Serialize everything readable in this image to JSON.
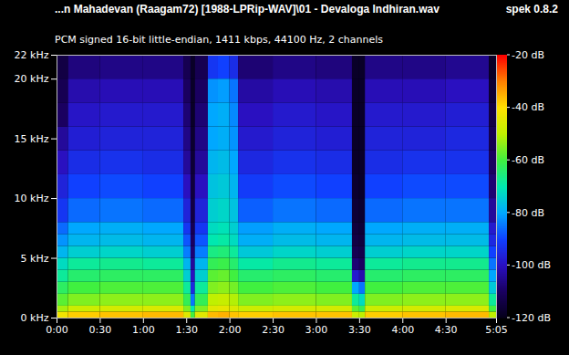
{
  "chart_data": {
    "type": "heatmap",
    "title": "...n Mahadevan (Raagam72) [1988-LPRip-WAV]\\01 - Devaloga Indhiran.wav",
    "subtitle": "PCM signed 16-bit little-endian, 1411 kbps, 44100 Hz, 2 channels",
    "annotations": [
      "spek 0.8.2"
    ],
    "xlim": [
      0,
      305
    ],
    "xticks": [
      {
        "value": 0,
        "label": "0:00"
      },
      {
        "value": 30,
        "label": "0:30"
      },
      {
        "value": 60,
        "label": "1:00"
      },
      {
        "value": 90,
        "label": "1:30"
      },
      {
        "value": 120,
        "label": "2:00"
      },
      {
        "value": 150,
        "label": "2:30"
      },
      {
        "value": 180,
        "label": "3:00"
      },
      {
        "value": 210,
        "label": "3:30"
      },
      {
        "value": 240,
        "label": "4:00"
      },
      {
        "value": 270,
        "label": "4:30"
      },
      {
        "value": 305,
        "label": "5:05"
      }
    ],
    "ylim": [
      0,
      22
    ],
    "yticks": [
      {
        "value": 0,
        "label": "0 kHz"
      },
      {
        "value": 5,
        "label": "5 kHz"
      },
      {
        "value": 10,
        "label": "10 kHz"
      },
      {
        "value": 15,
        "label": "15 kHz"
      },
      {
        "value": 20,
        "label": "20 kHz"
      },
      {
        "value": 22,
        "label": "22 kHz"
      }
    ],
    "x_edges": [
      0,
      8,
      30,
      60,
      88,
      93,
      96,
      105,
      112,
      120,
      126,
      150,
      180,
      205,
      210,
      214,
      240,
      270,
      300,
      305
    ],
    "y_edges": [
      0,
      0.5,
      1,
      2,
      3,
      4,
      5,
      6,
      7,
      8,
      10,
      12,
      14,
      16,
      18,
      20,
      22
    ],
    "cells": [
      [
        -42,
        -52,
        -58,
        -63,
        -68,
        -72,
        -78,
        -82,
        -86,
        -92,
        -96,
        -100,
        -104,
        -110,
        -112,
        -114
      ],
      [
        -38,
        -48,
        -55,
        -60,
        -64,
        -68,
        -74,
        -78,
        -80,
        -86,
        -90,
        -94,
        -97,
        -99,
        -102,
        -107
      ],
      [
        -37,
        -47,
        -54,
        -59,
        -63,
        -67,
        -73,
        -77,
        -79,
        -85,
        -89,
        -93,
        -96,
        -98,
        -101,
        -106
      ],
      [
        -36,
        -46,
        -54,
        -59,
        -63,
        -68,
        -74,
        -78,
        -80,
        -86,
        -90,
        -94,
        -96,
        -98,
        -101,
        -106
      ],
      [
        -45,
        -55,
        -62,
        -68,
        -74,
        -78,
        -84,
        -88,
        -92,
        -96,
        -100,
        -104,
        -106,
        -108,
        -110,
        -112
      ],
      [
        -60,
        -70,
        -85,
        -95,
        -100,
        -104,
        -108,
        -110,
        -112,
        -114,
        -115,
        -116,
        -117,
        -118,
        -118,
        -118
      ],
      [
        -45,
        -55,
        -62,
        -68,
        -74,
        -78,
        -84,
        -88,
        -92,
        -96,
        -100,
        -104,
        -106,
        -108,
        -110,
        -112
      ],
      [
        -36,
        -45,
        -50,
        -55,
        -58,
        -62,
        -66,
        -70,
        -72,
        -74,
        -76,
        -78,
        -80,
        -80,
        -82,
        -92
      ],
      [
        -35,
        -44,
        -49,
        -54,
        -57,
        -61,
        -65,
        -69,
        -71,
        -73,
        -75,
        -77,
        -79,
        -79,
        -81,
        -90
      ],
      [
        -37,
        -46,
        -51,
        -56,
        -60,
        -64,
        -68,
        -72,
        -74,
        -76,
        -78,
        -80,
        -82,
        -83,
        -85,
        -94
      ],
      [
        -38,
        -48,
        -55,
        -60,
        -64,
        -69,
        -75,
        -79,
        -81,
        -87,
        -91,
        -95,
        -98,
        -100,
        -103,
        -108
      ],
      [
        -37,
        -47,
        -54,
        -59,
        -63,
        -67,
        -73,
        -77,
        -79,
        -85,
        -89,
        -93,
        -96,
        -98,
        -101,
        -106
      ],
      [
        -37,
        -47,
        -55,
        -60,
        -64,
        -68,
        -74,
        -78,
        -80,
        -86,
        -90,
        -94,
        -97,
        -99,
        -102,
        -107
      ],
      [
        -48,
        -58,
        -68,
        -80,
        -98,
        -108,
        -112,
        -114,
        -115,
        -116,
        -117,
        -118,
        -118,
        -118,
        -118,
        -118
      ],
      [
        -50,
        -62,
        -72,
        -85,
        -102,
        -110,
        -113,
        -115,
        -116,
        -117,
        -118,
        -118,
        -118,
        -118,
        -118,
        -118
      ],
      [
        -38,
        -48,
        -55,
        -60,
        -64,
        -68,
        -74,
        -78,
        -80,
        -86,
        -90,
        -94,
        -96,
        -98,
        -101,
        -106
      ],
      [
        -37,
        -47,
        -54,
        -59,
        -63,
        -67,
        -73,
        -77,
        -79,
        -85,
        -89,
        -93,
        -96,
        -98,
        -101,
        -106
      ],
      [
        -36,
        -46,
        -54,
        -59,
        -63,
        -67,
        -73,
        -77,
        -79,
        -85,
        -89,
        -93,
        -95,
        -97,
        -100,
        -105
      ],
      [
        -50,
        -60,
        -68,
        -75,
        -80,
        -85,
        -90,
        -95,
        -98,
        -104,
        -108,
        -110,
        -112,
        -114,
        -116,
        -118
      ]
    ],
    "color_range": [
      -120,
      -20
    ],
    "color_ticks": [
      {
        "value": -20,
        "label": "-20 dB"
      },
      {
        "value": -40,
        "label": "-40 dB"
      },
      {
        "value": -60,
        "label": "-60 dB"
      },
      {
        "value": -80,
        "label": "-80 dB"
      },
      {
        "value": -100,
        "label": "-100 dB"
      },
      {
        "value": -120,
        "label": "-120 dB"
      }
    ]
  }
}
